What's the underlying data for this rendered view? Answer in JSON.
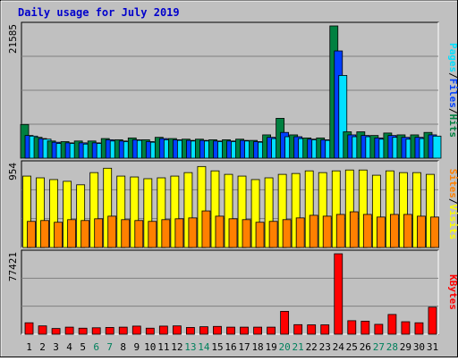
{
  "title": "Daily usage for July 2019",
  "colors": {
    "background": "#c0c0c0",
    "hits": "#008040",
    "files": "#0040ff",
    "pages": "#00e0ff",
    "visits": "#ffff00",
    "sites": "#ff8000",
    "kbytes": "#ff0000",
    "weekend_label": "#00805c",
    "weekday_label": "#000000"
  },
  "chart_data": [
    {
      "type": "bar",
      "panel": "hits-files-pages",
      "ymax_label": "21585",
      "ylim": [
        0,
        21585
      ],
      "x": [
        "1",
        "2",
        "3",
        "4",
        "5",
        "6",
        "7",
        "8",
        "9",
        "10",
        "11",
        "12",
        "13",
        "14",
        "15",
        "16",
        "17",
        "18",
        "19",
        "20",
        "21",
        "22",
        "23",
        "24",
        "25",
        "26",
        "27",
        "28",
        "29",
        "30",
        "31"
      ],
      "weekend": [
        "6",
        "7",
        "13",
        "14",
        "20",
        "21",
        "27",
        "28"
      ],
      "legend": [
        "Pages",
        "/",
        "Files",
        "/",
        "Hits"
      ],
      "grid": true,
      "series": [
        {
          "name": "Hits",
          "color": "#008040",
          "values": [
            5500,
            3400,
            2800,
            2700,
            2800,
            2800,
            3200,
            3000,
            3300,
            3000,
            3400,
            3200,
            3100,
            3100,
            3000,
            3000,
            3100,
            2900,
            3800,
            6500,
            3800,
            3300,
            3300,
            21585,
            4300,
            4300,
            3700,
            4100,
            3800,
            3800,
            4200
          ]
        },
        {
          "name": "Files",
          "color": "#0040ff",
          "values": [
            3700,
            3200,
            2600,
            2500,
            2500,
            2500,
            3000,
            2800,
            3000,
            2700,
            3200,
            3000,
            2900,
            2900,
            2800,
            2800,
            2900,
            2700,
            3400,
            4200,
            3500,
            3100,
            3000,
            17500,
            3800,
            3700,
            3300,
            3700,
            3400,
            3400,
            3800
          ]
        },
        {
          "name": "Pages",
          "color": "#00e0ff",
          "values": [
            3600,
            3100,
            2400,
            2400,
            2300,
            2400,
            2800,
            2700,
            2900,
            2600,
            3000,
            2900,
            2800,
            2800,
            2700,
            2700,
            2800,
            2600,
            3200,
            3500,
            3200,
            3000,
            2900,
            13500,
            3500,
            3500,
            3100,
            3400,
            3100,
            3200,
            3600
          ]
        }
      ]
    },
    {
      "type": "bar",
      "panel": "visits-sites",
      "ymax_label": "954",
      "ylim": [
        0,
        954
      ],
      "x": [
        "1",
        "2",
        "3",
        "4",
        "5",
        "6",
        "7",
        "8",
        "9",
        "10",
        "11",
        "12",
        "13",
        "14",
        "15",
        "16",
        "17",
        "18",
        "19",
        "20",
        "21",
        "22",
        "23",
        "24",
        "25",
        "26",
        "27",
        "28",
        "29",
        "30",
        "31"
      ],
      "legend": [
        "Sites",
        "/",
        "Visits"
      ],
      "grid": true,
      "series": [
        {
          "name": "Visits",
          "color": "#ffff00",
          "values": [
            820,
            800,
            780,
            760,
            720,
            860,
            910,
            820,
            810,
            790,
            800,
            820,
            860,
            930,
            880,
            840,
            820,
            780,
            800,
            840,
            850,
            880,
            860,
            880,
            890,
            890,
            830,
            880,
            860,
            860,
            840
          ]
        },
        {
          "name": "Sites",
          "color": "#ff8000",
          "values": [
            300,
            310,
            290,
            320,
            310,
            330,
            360,
            320,
            310,
            300,
            320,
            330,
            340,
            420,
            360,
            330,
            320,
            290,
            300,
            320,
            340,
            370,
            360,
            380,
            410,
            380,
            350,
            380,
            380,
            360,
            350
          ]
        }
      ]
    },
    {
      "type": "bar",
      "panel": "kbytes",
      "ymax_label": "77421",
      "ylim": [
        0,
        77421
      ],
      "x": [
        "1",
        "2",
        "3",
        "4",
        "5",
        "6",
        "7",
        "8",
        "9",
        "10",
        "11",
        "12",
        "13",
        "14",
        "15",
        "16",
        "17",
        "18",
        "19",
        "20",
        "21",
        "22",
        "23",
        "24",
        "25",
        "26",
        "27",
        "28",
        "29",
        "30",
        "31"
      ],
      "legend": [
        "KBytes"
      ],
      "grid": true,
      "series": [
        {
          "name": "KBytes",
          "color": "#ff0000",
          "values": [
            11000,
            8000,
            5500,
            6800,
            5800,
            6200,
            6500,
            6800,
            7800,
            5800,
            7800,
            8000,
            6500,
            7200,
            7500,
            6800,
            6800,
            6800,
            6800,
            22000,
            9200,
            9000,
            9000,
            77421,
            13000,
            12500,
            9500,
            19000,
            12000,
            11000,
            26000
          ]
        }
      ]
    }
  ]
}
